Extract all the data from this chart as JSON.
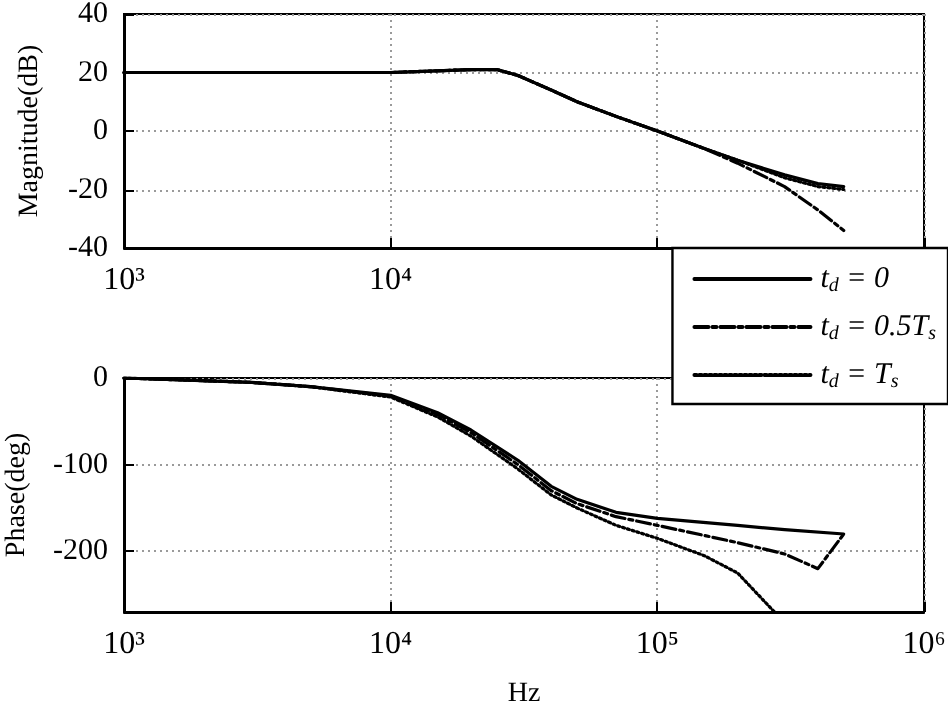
{
  "chart_data": [
    {
      "type": "line",
      "ylabel": "Magnitude(dB)",
      "xlim": [
        1000,
        1000000
      ],
      "log": "x",
      "ylim": [
        -40,
        40
      ],
      "yticks": [
        -40,
        -20,
        0,
        20,
        40
      ],
      "xticks": [
        {
          "value": 1000,
          "label": "10³"
        },
        {
          "value": 10000,
          "label": "10⁴"
        },
        {
          "value": 100000,
          "label": null
        },
        {
          "value": 1000000,
          "label": null
        }
      ],
      "grid": true,
      "marker": "none",
      "series": [
        {
          "color": "#000000",
          "line_style": "solid",
          "x": [
            1000,
            3000,
            10000,
            20000,
            25000,
            30000,
            40000,
            50000,
            70000,
            100000,
            150000,
            200000,
            300000,
            400000,
            500000
          ],
          "values": [
            20,
            20,
            20,
            21,
            21,
            19,
            14,
            10,
            5,
            0,
            -6,
            -10,
            -15,
            -18,
            -19
          ]
        },
        {
          "color": "#000000",
          "line_style": "dashed",
          "x": [
            1000,
            3000,
            10000,
            20000,
            25000,
            30000,
            40000,
            50000,
            70000,
            100000,
            150000,
            200000,
            300000,
            400000,
            500000
          ],
          "values": [
            20,
            20,
            20,
            21,
            21,
            19,
            14,
            10,
            5,
            0,
            -6,
            -11,
            -19,
            -27,
            -34
          ]
        },
        {
          "color": "#000000",
          "line_style": "dotted",
          "x": [
            1000,
            3000,
            10000,
            20000,
            25000,
            30000,
            40000,
            50000,
            70000,
            100000,
            150000,
            200000,
            300000,
            400000,
            500000
          ],
          "values": [
            20,
            20,
            20,
            21,
            21,
            19,
            14,
            10,
            5,
            0,
            -6,
            -10,
            -16,
            -19,
            -20
          ]
        }
      ]
    },
    {
      "type": "line",
      "ylabel": "Phase(deg)",
      "xlabel": "Hz",
      "xlim": [
        1000,
        1000000
      ],
      "log": "x",
      "ylim": [
        -270,
        0
      ],
      "yticks": [
        -200,
        -100,
        0
      ],
      "xticks": [
        {
          "value": 1000,
          "label": "10³"
        },
        {
          "value": 10000,
          "label": "10⁴"
        },
        {
          "value": 100000,
          "label": "10⁵"
        },
        {
          "value": 1000000,
          "label": "10⁶"
        }
      ],
      "grid": true,
      "marker": "none",
      "legend": "top right",
      "series": [
        {
          "name": "t$_{d}$ = 0",
          "color": "#000000",
          "line_style": "solid",
          "x": [
            1000,
            3000,
            5000,
            10000,
            15000,
            20000,
            30000,
            40000,
            50000,
            70000,
            100000,
            200000,
            300000,
            500000
          ],
          "values": [
            0,
            -5,
            -10,
            -20,
            -40,
            -60,
            -95,
            -125,
            -140,
            -155,
            -162,
            -170,
            -175,
            -180
          ]
        },
        {
          "name": "t$_{d}$ = 0.5T$_{s}$",
          "color": "#000000",
          "line_style": "dashed",
          "x": [
            1000,
            3000,
            5000,
            10000,
            15000,
            20000,
            30000,
            40000,
            50000,
            70000,
            100000,
            200000,
            300000,
            400000,
            500000
          ],
          "values": [
            0,
            -5,
            -10,
            -21,
            -42,
            -63,
            -100,
            -130,
            -145,
            -160,
            -170,
            -190,
            -203,
            -220,
            -180
          ]
        },
        {
          "name": "t$_{d}$ = T$_{s}$",
          "color": "#000000",
          "line_style": "dotted",
          "x": [
            1000,
            3000,
            5000,
            10000,
            15000,
            20000,
            30000,
            40000,
            50000,
            70000,
            100000,
            150000,
            200000,
            275000
          ],
          "values": [
            0,
            -5,
            -10,
            -22,
            -45,
            -67,
            -105,
            -135,
            -150,
            -170,
            -185,
            -205,
            -225,
            -270
          ]
        }
      ]
    }
  ]
}
